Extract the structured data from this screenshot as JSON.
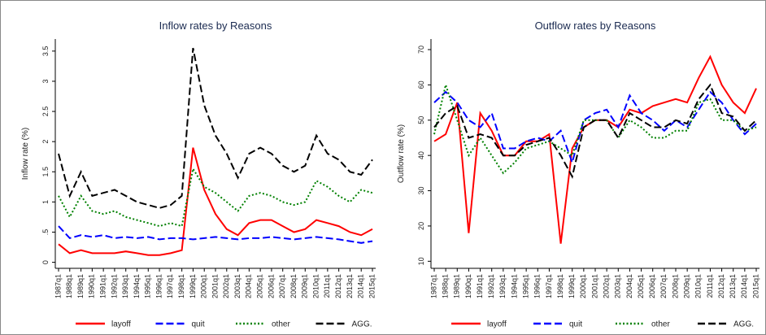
{
  "chart_data": [
    {
      "type": "line",
      "title": "Inflow rates by Reasons",
      "ylabel": "Inflow rate (%)",
      "categories": [
        "1987q1",
        "1988q1",
        "1989q1",
        "1990q1",
        "1991q1",
        "1992q1",
        "1993q1",
        "1994q1",
        "1995q1",
        "1996q1",
        "1997q1",
        "1998q1",
        "1999q1",
        "2000q1",
        "2001q1",
        "2002q1",
        "2003q1",
        "2004q1",
        "2005q1",
        "2006q1",
        "2007q1",
        "2008q1",
        "2009q1",
        "2010q1",
        "2011q1",
        "2012q1",
        "2013q1",
        "2014q1",
        "2015q1"
      ],
      "ylim": [
        -0.1,
        3.7
      ],
      "yticks": [
        0,
        {
          "value": 0.5,
          "label": ".5"
        },
        1,
        1.5,
        2,
        2.5,
        3,
        3.5
      ],
      "legend": "bottom",
      "series": [
        {
          "name": "layoff",
          "color": "#ff0000",
          "linestyle": "solid",
          "values": [
            0.3,
            0.15,
            0.2,
            0.15,
            0.15,
            0.15,
            0.18,
            0.15,
            0.12,
            0.12,
            0.15,
            0.2,
            1.9,
            1.2,
            0.8,
            0.55,
            0.45,
            0.65,
            0.7,
            0.7,
            0.6,
            0.5,
            0.55,
            0.7,
            0.65,
            0.6,
            0.5,
            0.45,
            0.55
          ]
        },
        {
          "name": "quit",
          "color": "#0000ff",
          "linestyle": "dashed",
          "values": [
            0.6,
            0.4,
            0.45,
            0.42,
            0.45,
            0.4,
            0.42,
            0.4,
            0.42,
            0.38,
            0.4,
            0.4,
            0.38,
            0.4,
            0.42,
            0.4,
            0.38,
            0.4,
            0.4,
            0.42,
            0.4,
            0.38,
            0.4,
            0.42,
            0.4,
            0.38,
            0.35,
            0.32,
            0.35
          ]
        },
        {
          "name": "other",
          "color": "#008000",
          "linestyle": "dotted",
          "values": [
            1.1,
            0.75,
            1.1,
            0.85,
            0.8,
            0.85,
            0.75,
            0.7,
            0.65,
            0.6,
            0.65,
            0.6,
            1.55,
            1.25,
            1.15,
            1.0,
            0.85,
            1.1,
            1.15,
            1.1,
            1.0,
            0.95,
            1.0,
            1.35,
            1.25,
            1.1,
            1.0,
            1.2,
            1.15
          ]
        },
        {
          "name": "AGG.",
          "color": "#000000",
          "linestyle": "dashed",
          "values": [
            1.8,
            1.1,
            1.5,
            1.1,
            1.15,
            1.2,
            1.1,
            1.0,
            0.95,
            0.9,
            0.95,
            1.1,
            3.55,
            2.6,
            2.1,
            1.8,
            1.4,
            1.8,
            1.9,
            1.8,
            1.6,
            1.5,
            1.6,
            2.1,
            1.8,
            1.7,
            1.5,
            1.45,
            1.7
          ]
        }
      ]
    },
    {
      "type": "line",
      "title": "Outflow rates by Reasons",
      "ylabel": "Outflow rate (%)",
      "categories": [
        "1987q1",
        "1988q1",
        "1989q1",
        "1990q1",
        "1991q1",
        "1992q1",
        "1993q1",
        "1994q1",
        "1995q1",
        "1996q1",
        "1997q1",
        "1998q1",
        "1999q1",
        "2000q1",
        "2001q1",
        "2002q1",
        "2003q1",
        "2004q1",
        "2005q1",
        "2006q1",
        "2007q1",
        "2008q1",
        "2009q1",
        "2010q1",
        "2011q1",
        "2012q1",
        "2013q1",
        "2014q1",
        "2015q1"
      ],
      "ylim": [
        8,
        73
      ],
      "yticks": [
        10,
        20,
        30,
        40,
        50,
        60,
        70
      ],
      "legend": "bottom",
      "series": [
        {
          "name": "layoff",
          "color": "#ff0000",
          "linestyle": "solid",
          "values": [
            44,
            46,
            55,
            18,
            52,
            47,
            40,
            40,
            44,
            44,
            46,
            15,
            42,
            48,
            50,
            50,
            48,
            53,
            52,
            54,
            55,
            56,
            55,
            62,
            68,
            60,
            55,
            52,
            59
          ]
        },
        {
          "name": "quit",
          "color": "#0000ff",
          "linestyle": "dashed",
          "values": [
            55,
            58,
            55,
            50,
            48,
            52,
            42,
            42,
            44,
            45,
            44,
            47,
            38,
            50,
            52,
            53,
            48,
            57,
            52,
            50,
            47,
            50,
            48,
            53,
            58,
            55,
            50,
            46,
            49
          ]
        },
        {
          "name": "other",
          "color": "#008000",
          "linestyle": "dotted",
          "values": [
            46,
            60,
            50,
            40,
            45,
            40,
            35,
            38,
            42,
            43,
            44,
            42,
            40,
            50,
            50,
            50,
            45,
            50,
            48,
            45,
            45,
            47,
            47,
            55,
            56,
            50,
            50,
            47,
            48
          ]
        },
        {
          "name": "AGG.",
          "color": "#000000",
          "linestyle": "dashed",
          "values": [
            48,
            52,
            54,
            45,
            46,
            45,
            40,
            40,
            43,
            44,
            45,
            40,
            34,
            48,
            50,
            50,
            45,
            52,
            50,
            48,
            48,
            50,
            49,
            56,
            60,
            52,
            51,
            47,
            50
          ]
        }
      ]
    }
  ]
}
